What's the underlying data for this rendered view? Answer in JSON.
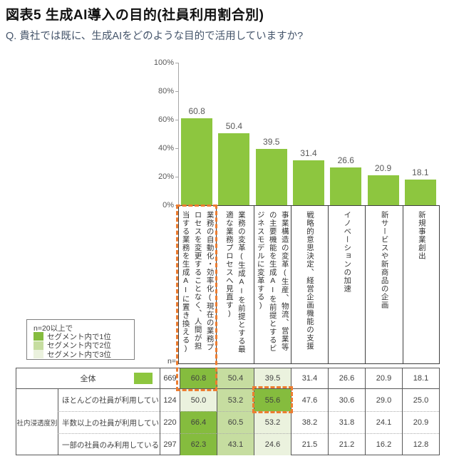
{
  "title": "図表5 生成AI導入の目的(社員利用割合別)",
  "question": "Q. 貴社では既に、生成AIをどのような目的で活用していますか?",
  "colors": {
    "bar": "#8DC63F",
    "rank1": "#85BC3E",
    "rank2": "#C6DDA0",
    "rank3": "#EBF2DE",
    "highlight_orange": "#ED7D31",
    "number_text": "#595959"
  },
  "chart_data": {
    "type": "bar",
    "title": "生成AI導入の目的(社員利用割合別)",
    "categories": [
      "業務の自動化・効率化(現在の業務プ\nロセスを変更することなく、人間が担\n当する業務を生成AIに置き換える)",
      "業務の変革(生成AIを前提とする最\n適な業務プロセスへ見直す)",
      "事業構造の変革(生産、物流、営業等\nの主要機能を生成AIを前提とするビ\nジネスモデルに変革する)",
      "戦略的意思決定、経営企画機能の支援",
      "イノベーションの加速",
      "新サービスや新商品の企画",
      "新規事業創出"
    ],
    "values": [
      60.8,
      50.4,
      39.5,
      31.4,
      26.6,
      20.9,
      18.1
    ],
    "xlabel": "",
    "ylabel": "",
    "ylim": [
      0,
      100
    ],
    "ytick_values": [
      0,
      20,
      40,
      60,
      80,
      100
    ],
    "ytick_labels": [
      "0%",
      "20%",
      "40%",
      "60%",
      "80%",
      "100%"
    ],
    "grid": false,
    "legend_position": "bottom-left"
  },
  "legend": {
    "note": "n=20以上で",
    "items": [
      {
        "label": "セグメント内で1位",
        "rank": 1
      },
      {
        "label": "セグメント内で2位",
        "rank": 2
      },
      {
        "label": "セグメント内で3位",
        "rank": 3
      }
    ]
  },
  "table": {
    "n_header": "n=",
    "group_label": "社内浸透度別",
    "rows": [
      {
        "label": "全体",
        "n": "669",
        "values": [
          "60.8",
          "50.4",
          "39.5",
          "31.4",
          "26.6",
          "20.9",
          "18.1"
        ],
        "ranks": [
          1,
          2,
          3,
          0,
          0,
          0,
          0
        ],
        "swatch": true
      },
      {
        "label": "ほとんどの社員が利用している",
        "n": "124",
        "values": [
          "50.0",
          "53.2",
          "55.6",
          "47.6",
          "30.6",
          "29.0",
          "25.0"
        ],
        "ranks": [
          3,
          2,
          1,
          0,
          0,
          0,
          0
        ]
      },
      {
        "label": "半数以上の社員が利用している",
        "n": "220",
        "values": [
          "66.4",
          "60.5",
          "53.2",
          "38.2",
          "31.8",
          "24.1",
          "20.9"
        ],
        "ranks": [
          1,
          2,
          3,
          0,
          0,
          0,
          0
        ]
      },
      {
        "label": "一部の社員のみ利用している",
        "n": "297",
        "values": [
          "62.3",
          "43.1",
          "24.6",
          "21.5",
          "21.2",
          "16.2",
          "12.8"
        ],
        "ranks": [
          1,
          2,
          3,
          0,
          0,
          0,
          0
        ]
      }
    ],
    "highlights": [
      {
        "type": "column",
        "category_index": 0
      },
      {
        "type": "cell",
        "row_index": 1,
        "column_index": 2
      }
    ]
  }
}
